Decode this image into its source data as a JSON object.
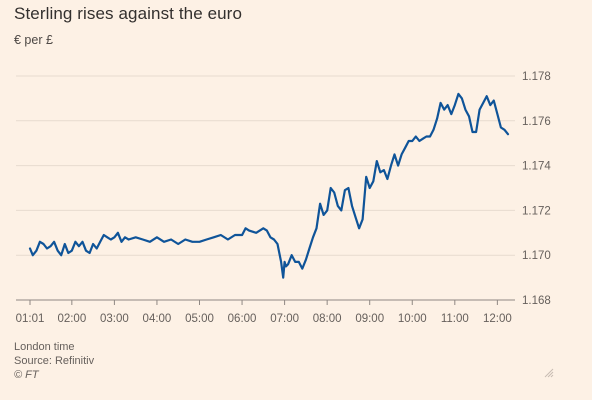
{
  "chart_data": {
    "type": "line",
    "title": "Sterling rises against the euro",
    "subtitle": "€ per £",
    "xlabel": "London time",
    "ylabel": "",
    "x_ticks": [
      "01:01",
      "02:00",
      "03:00",
      "04:00",
      "05:00",
      "06:00",
      "07:00",
      "08:00",
      "09:00",
      "10:00",
      "11:00",
      "12:00"
    ],
    "y_ticks": [
      "1.168",
      "1.170",
      "1.172",
      "1.174",
      "1.176",
      "1.178"
    ],
    "ylim": [
      1.168,
      1.178
    ],
    "xlim": [
      "01:01",
      "12:15"
    ],
    "grid": "horizontal",
    "y_axis_side": "right",
    "line_color": "#0f5499",
    "series": [
      {
        "x": [
          "01:01",
          "01:05",
          "01:10",
          "01:15",
          "01:20",
          "01:25",
          "01:30",
          "01:35",
          "01:40",
          "01:45",
          "01:50",
          "01:55",
          "02:00",
          "02:05",
          "02:10",
          "02:15",
          "02:20",
          "02:25",
          "02:30",
          "02:35",
          "02:40",
          "02:45",
          "02:50",
          "02:55",
          "03:00",
          "03:05",
          "03:10",
          "03:15",
          "03:20",
          "03:30",
          "03:40",
          "03:50",
          "04:00",
          "04:10",
          "04:20",
          "04:30",
          "04:40",
          "04:50",
          "05:00",
          "05:10",
          "05:20",
          "05:30",
          "05:40",
          "05:50",
          "06:00",
          "06:05",
          "06:10",
          "06:20",
          "06:30",
          "06:35",
          "06:40",
          "06:45",
          "06:50",
          "06:55",
          "06:58",
          "07:00",
          "07:02",
          "07:05",
          "07:10",
          "07:15",
          "07:20",
          "07:25",
          "07:30",
          "07:35",
          "07:40",
          "07:45",
          "07:50",
          "07:55",
          "08:00",
          "08:05",
          "08:10",
          "08:15",
          "08:20",
          "08:25",
          "08:30",
          "08:35",
          "08:40",
          "08:45",
          "08:50",
          "08:55",
          "09:00",
          "09:05",
          "09:10",
          "09:15",
          "09:20",
          "09:25",
          "09:30",
          "09:35",
          "09:40",
          "09:45",
          "09:50",
          "09:55",
          "10:00",
          "10:05",
          "10:10",
          "10:15",
          "10:20",
          "10:25",
          "10:30",
          "10:35",
          "10:40",
          "10:45",
          "10:50",
          "10:55",
          "11:00",
          "11:05",
          "11:10",
          "11:15",
          "11:20",
          "11:25",
          "11:30",
          "11:35",
          "11:40",
          "11:45",
          "11:50",
          "11:55",
          "12:00",
          "12:05",
          "12:10",
          "12:15"
        ],
        "y": [
          1.1703,
          1.17,
          1.1702,
          1.1706,
          1.1705,
          1.1703,
          1.1704,
          1.1706,
          1.1702,
          1.17,
          1.1705,
          1.1701,
          1.1702,
          1.1706,
          1.1704,
          1.1706,
          1.1702,
          1.1701,
          1.1705,
          1.1703,
          1.1706,
          1.1709,
          1.1708,
          1.1707,
          1.1708,
          1.171,
          1.1706,
          1.1708,
          1.1707,
          1.1708,
          1.1707,
          1.1706,
          1.1708,
          1.1706,
          1.1707,
          1.1705,
          1.1707,
          1.1706,
          1.1706,
          1.1707,
          1.1708,
          1.1709,
          1.1707,
          1.1709,
          1.1709,
          1.1712,
          1.1711,
          1.171,
          1.1712,
          1.1711,
          1.1708,
          1.1707,
          1.1705,
          1.1697,
          1.169,
          1.1697,
          1.1695,
          1.1696,
          1.17,
          1.1697,
          1.1697,
          1.1694,
          1.1698,
          1.1703,
          1.1708,
          1.1712,
          1.1723,
          1.1718,
          1.172,
          1.173,
          1.1728,
          1.1722,
          1.172,
          1.1729,
          1.173,
          1.1722,
          1.1717,
          1.1712,
          1.1716,
          1.1735,
          1.173,
          1.1733,
          1.1742,
          1.1737,
          1.1738,
          1.1734,
          1.174,
          1.1745,
          1.174,
          1.1745,
          1.1748,
          1.1751,
          1.1751,
          1.1753,
          1.1751,
          1.1752,
          1.1753,
          1.1753,
          1.1756,
          1.1761,
          1.1768,
          1.1765,
          1.1767,
          1.1763,
          1.1767,
          1.1772,
          1.177,
          1.1765,
          1.1762,
          1.1755,
          1.1755,
          1.1765,
          1.1768,
          1.1771,
          1.1767,
          1.1769,
          1.1763,
          1.1757,
          1.1756,
          1.1754
        ]
      }
    ]
  },
  "footer": {
    "xlabel": "London time",
    "source": "Source: Refinitiv",
    "credit": "© FT"
  },
  "icons": {
    "corner": "resize-grip-icon"
  }
}
